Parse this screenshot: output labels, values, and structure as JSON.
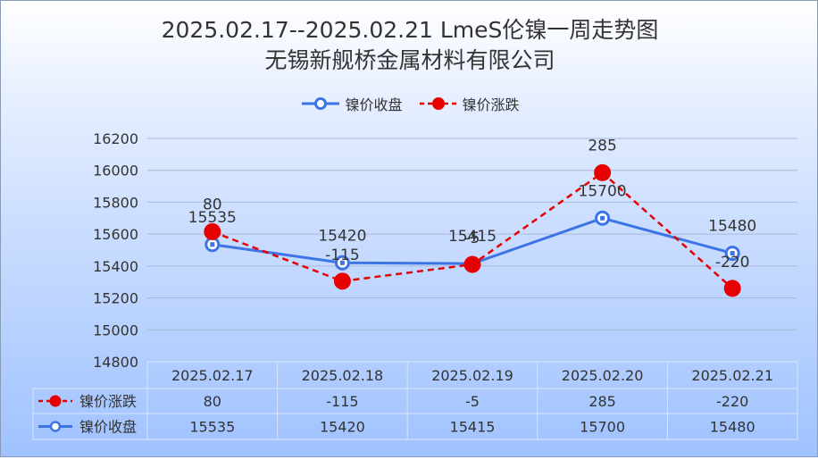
{
  "title": {
    "line1": "2025.02.17--2025.02.21 LmeS伦镍一周走势图",
    "line2": "无锡新舰桥金属材料有限公司"
  },
  "legend": [
    {
      "label": "镍价收盘",
      "color": "#3c74e6",
      "style": "solid"
    },
    {
      "label": "镍价涨跌",
      "color": "#e60000",
      "style": "dashed"
    }
  ],
  "chart_data": {
    "type": "line",
    "title": "2025.02.17--2025.02.21 LmeS伦镍一周走势图",
    "subtitle": "无锡新舰桥金属材料有限公司",
    "categories": [
      "2025.02.17",
      "2025.02.18",
      "2025.02.19",
      "2025.02.20",
      "2025.02.21"
    ],
    "series": [
      {
        "name": "镍价涨跌",
        "values": [
          80,
          -115,
          -5,
          285,
          -220
        ],
        "color": "#e60000",
        "plot_positions": [
          15615,
          15305,
          15410,
          15985,
          15260
        ]
      },
      {
        "name": "镍价收盘",
        "values": [
          15535,
          15420,
          15415,
          15700,
          15480
        ],
        "color": "#3c74e6"
      }
    ],
    "yticks": [
      14800,
      15000,
      15200,
      15400,
      15600,
      15800,
      16000,
      16200
    ],
    "ylim": [
      14800,
      16200
    ],
    "grid": true,
    "legend_position": "top",
    "data_table": true
  }
}
